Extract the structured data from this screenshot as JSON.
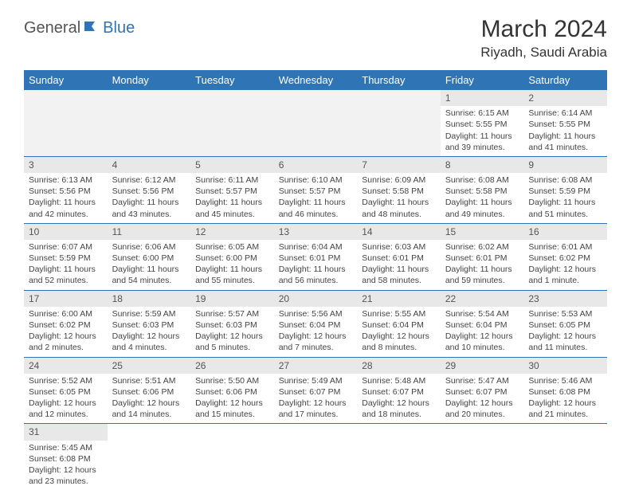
{
  "logo": {
    "part1": "General",
    "part2": "Blue"
  },
  "title": "March 2024",
  "location": "Riyadh, Saudi Arabia",
  "colors": {
    "header_bg": "#2f74b5",
    "header_fg": "#ffffff",
    "daynum_bg": "#e8e8e8",
    "row_border": "#2f74b5",
    "empty_bg": "#f2f2f2"
  },
  "weekdays": [
    "Sunday",
    "Monday",
    "Tuesday",
    "Wednesday",
    "Thursday",
    "Friday",
    "Saturday"
  ],
  "weeks": [
    [
      null,
      null,
      null,
      null,
      null,
      {
        "n": "1",
        "sr": "Sunrise: 6:15 AM",
        "ss": "Sunset: 5:55 PM",
        "dl": "Daylight: 11 hours and 39 minutes."
      },
      {
        "n": "2",
        "sr": "Sunrise: 6:14 AM",
        "ss": "Sunset: 5:55 PM",
        "dl": "Daylight: 11 hours and 41 minutes."
      }
    ],
    [
      {
        "n": "3",
        "sr": "Sunrise: 6:13 AM",
        "ss": "Sunset: 5:56 PM",
        "dl": "Daylight: 11 hours and 42 minutes."
      },
      {
        "n": "4",
        "sr": "Sunrise: 6:12 AM",
        "ss": "Sunset: 5:56 PM",
        "dl": "Daylight: 11 hours and 43 minutes."
      },
      {
        "n": "5",
        "sr": "Sunrise: 6:11 AM",
        "ss": "Sunset: 5:57 PM",
        "dl": "Daylight: 11 hours and 45 minutes."
      },
      {
        "n": "6",
        "sr": "Sunrise: 6:10 AM",
        "ss": "Sunset: 5:57 PM",
        "dl": "Daylight: 11 hours and 46 minutes."
      },
      {
        "n": "7",
        "sr": "Sunrise: 6:09 AM",
        "ss": "Sunset: 5:58 PM",
        "dl": "Daylight: 11 hours and 48 minutes."
      },
      {
        "n": "8",
        "sr": "Sunrise: 6:08 AM",
        "ss": "Sunset: 5:58 PM",
        "dl": "Daylight: 11 hours and 49 minutes."
      },
      {
        "n": "9",
        "sr": "Sunrise: 6:08 AM",
        "ss": "Sunset: 5:59 PM",
        "dl": "Daylight: 11 hours and 51 minutes."
      }
    ],
    [
      {
        "n": "10",
        "sr": "Sunrise: 6:07 AM",
        "ss": "Sunset: 5:59 PM",
        "dl": "Daylight: 11 hours and 52 minutes."
      },
      {
        "n": "11",
        "sr": "Sunrise: 6:06 AM",
        "ss": "Sunset: 6:00 PM",
        "dl": "Daylight: 11 hours and 54 minutes."
      },
      {
        "n": "12",
        "sr": "Sunrise: 6:05 AM",
        "ss": "Sunset: 6:00 PM",
        "dl": "Daylight: 11 hours and 55 minutes."
      },
      {
        "n": "13",
        "sr": "Sunrise: 6:04 AM",
        "ss": "Sunset: 6:01 PM",
        "dl": "Daylight: 11 hours and 56 minutes."
      },
      {
        "n": "14",
        "sr": "Sunrise: 6:03 AM",
        "ss": "Sunset: 6:01 PM",
        "dl": "Daylight: 11 hours and 58 minutes."
      },
      {
        "n": "15",
        "sr": "Sunrise: 6:02 AM",
        "ss": "Sunset: 6:01 PM",
        "dl": "Daylight: 11 hours and 59 minutes."
      },
      {
        "n": "16",
        "sr": "Sunrise: 6:01 AM",
        "ss": "Sunset: 6:02 PM",
        "dl": "Daylight: 12 hours and 1 minute."
      }
    ],
    [
      {
        "n": "17",
        "sr": "Sunrise: 6:00 AM",
        "ss": "Sunset: 6:02 PM",
        "dl": "Daylight: 12 hours and 2 minutes."
      },
      {
        "n": "18",
        "sr": "Sunrise: 5:59 AM",
        "ss": "Sunset: 6:03 PM",
        "dl": "Daylight: 12 hours and 4 minutes."
      },
      {
        "n": "19",
        "sr": "Sunrise: 5:57 AM",
        "ss": "Sunset: 6:03 PM",
        "dl": "Daylight: 12 hours and 5 minutes."
      },
      {
        "n": "20",
        "sr": "Sunrise: 5:56 AM",
        "ss": "Sunset: 6:04 PM",
        "dl": "Daylight: 12 hours and 7 minutes."
      },
      {
        "n": "21",
        "sr": "Sunrise: 5:55 AM",
        "ss": "Sunset: 6:04 PM",
        "dl": "Daylight: 12 hours and 8 minutes."
      },
      {
        "n": "22",
        "sr": "Sunrise: 5:54 AM",
        "ss": "Sunset: 6:04 PM",
        "dl": "Daylight: 12 hours and 10 minutes."
      },
      {
        "n": "23",
        "sr": "Sunrise: 5:53 AM",
        "ss": "Sunset: 6:05 PM",
        "dl": "Daylight: 12 hours and 11 minutes."
      }
    ],
    [
      {
        "n": "24",
        "sr": "Sunrise: 5:52 AM",
        "ss": "Sunset: 6:05 PM",
        "dl": "Daylight: 12 hours and 12 minutes."
      },
      {
        "n": "25",
        "sr": "Sunrise: 5:51 AM",
        "ss": "Sunset: 6:06 PM",
        "dl": "Daylight: 12 hours and 14 minutes."
      },
      {
        "n": "26",
        "sr": "Sunrise: 5:50 AM",
        "ss": "Sunset: 6:06 PM",
        "dl": "Daylight: 12 hours and 15 minutes."
      },
      {
        "n": "27",
        "sr": "Sunrise: 5:49 AM",
        "ss": "Sunset: 6:07 PM",
        "dl": "Daylight: 12 hours and 17 minutes."
      },
      {
        "n": "28",
        "sr": "Sunrise: 5:48 AM",
        "ss": "Sunset: 6:07 PM",
        "dl": "Daylight: 12 hours and 18 minutes."
      },
      {
        "n": "29",
        "sr": "Sunrise: 5:47 AM",
        "ss": "Sunset: 6:07 PM",
        "dl": "Daylight: 12 hours and 20 minutes."
      },
      {
        "n": "30",
        "sr": "Sunrise: 5:46 AM",
        "ss": "Sunset: 6:08 PM",
        "dl": "Daylight: 12 hours and 21 minutes."
      }
    ],
    [
      {
        "n": "31",
        "sr": "Sunrise: 5:45 AM",
        "ss": "Sunset: 6:08 PM",
        "dl": "Daylight: 12 hours and 23 minutes."
      },
      null,
      null,
      null,
      null,
      null,
      null
    ]
  ]
}
